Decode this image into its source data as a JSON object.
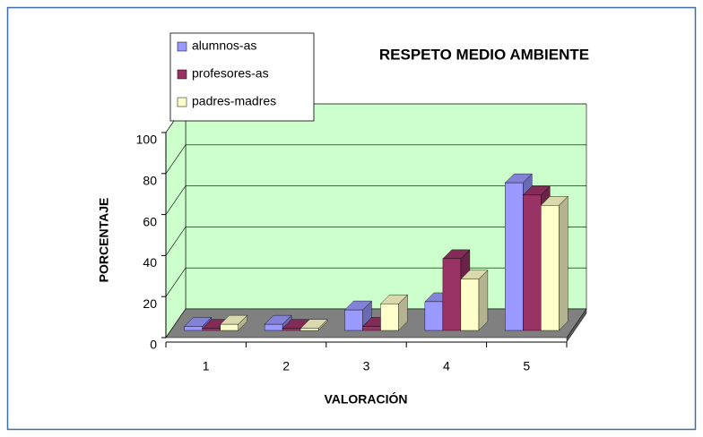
{
  "chart_data": {
    "type": "bar3d",
    "title": "RESPETO MEDIO AMBIENTE",
    "x_label": "VALORACIÓN",
    "y_label": "PORCENTAJE",
    "categories": [
      "1",
      "2",
      "3",
      "4",
      "5"
    ],
    "series": [
      {
        "name": "alumnos-as",
        "color": "#9999ff",
        "values": [
          2,
          3,
          10,
          14,
          72
        ]
      },
      {
        "name": "profesores-as",
        "color": "#993366",
        "values": [
          1,
          1,
          2,
          35,
          66
        ]
      },
      {
        "name": "padres-madres",
        "color": "#ffffcc",
        "values": [
          3,
          1,
          13,
          25,
          61
        ]
      }
    ],
    "ylim": [
      0,
      100
    ],
    "yticks": [
      0,
      20,
      40,
      60,
      80,
      100
    ],
    "grid": true,
    "legend": "top-left"
  }
}
